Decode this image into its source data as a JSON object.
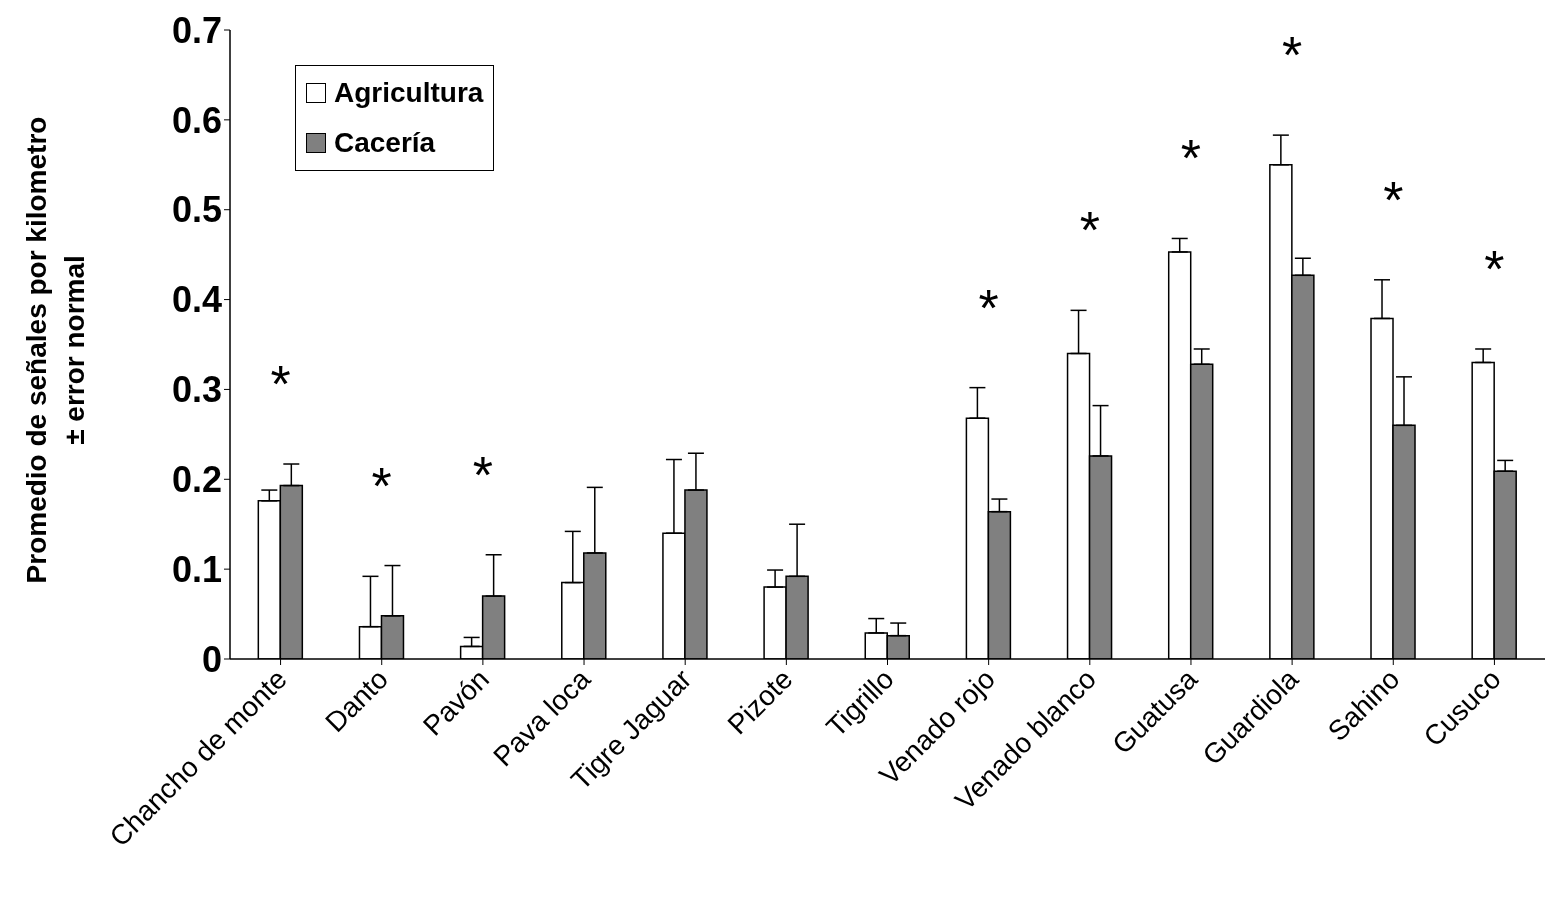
{
  "chart_data": {
    "type": "bar",
    "ylabel": "Promedio de señales por kilometro\n± error normal",
    "categories": [
      "Chancho de monte",
      "Danto",
      "Pavón",
      "Pava loca",
      "Tigre Jaguar",
      "Pizote",
      "Tigrillo",
      "Venado rojo",
      "Venado blanco",
      "Guatusa",
      "Guardiola",
      "Sahino",
      "Cusuco"
    ],
    "series": [
      {
        "name": "Agricultura",
        "color": "#ffffff",
        "values": [
          0.176,
          0.036,
          0.014,
          0.085,
          0.14,
          0.08,
          0.029,
          0.268,
          0.34,
          0.453,
          0.55,
          0.379,
          0.33
        ],
        "errors": [
          [
            0.176,
            0.188
          ],
          [
            0.036,
            0.092
          ],
          [
            0.014,
            0.024
          ],
          [
            0.085,
            0.142
          ],
          [
            0.14,
            0.222
          ],
          [
            0.08,
            0.099
          ],
          [
            0.029,
            0.045
          ],
          [
            0.268,
            0.302
          ],
          [
            0.34,
            0.388
          ],
          [
            0.453,
            0.468
          ],
          [
            0.55,
            0.583
          ],
          [
            0.379,
            0.422
          ],
          [
            0.33,
            0.345
          ]
        ]
      },
      {
        "name": "Cacería",
        "color": "#808080",
        "values": [
          0.193,
          0.048,
          0.07,
          0.118,
          0.188,
          0.092,
          0.026,
          0.164,
          0.226,
          0.328,
          0.427,
          0.26,
          0.209
        ],
        "errors": [
          [
            0.193,
            0.217
          ],
          [
            0.048,
            0.104
          ],
          [
            0.07,
            0.116
          ],
          [
            0.118,
            0.191
          ],
          [
            0.188,
            0.229
          ],
          [
            0.092,
            0.15
          ],
          [
            0.026,
            0.04
          ],
          [
            0.164,
            0.178
          ],
          [
            0.226,
            0.282
          ],
          [
            0.328,
            0.345
          ],
          [
            0.427,
            0.446
          ],
          [
            0.26,
            0.314
          ],
          [
            0.209,
            0.221
          ]
        ]
      }
    ],
    "ylim": [
      0,
      0.7
    ],
    "yticks": [
      0,
      0.1,
      0.2,
      0.3,
      0.4,
      0.5,
      0.6,
      0.7
    ],
    "grid": false,
    "legend": "top left",
    "annotations": [
      {
        "text": "*",
        "x": "Chancho de monte",
        "y": 0.217
      },
      {
        "text": "*",
        "x": "Danto",
        "y": 0.104
      },
      {
        "text": "*",
        "x": "Pavón",
        "y": 0.116
      },
      {
        "text": "*",
        "x": "Venado rojo",
        "y": 0.302
      },
      {
        "text": "*",
        "x": "Venado blanco",
        "y": 0.388
      },
      {
        "text": "*",
        "x": "Guatusa",
        "y": 0.468
      },
      {
        "text": "*",
        "x": "Guardiola",
        "y": 0.583
      },
      {
        "text": "*",
        "x": "Sahino",
        "y": 0.422
      },
      {
        "text": "*",
        "x": "Cusuco",
        "y": 0.345
      }
    ]
  }
}
